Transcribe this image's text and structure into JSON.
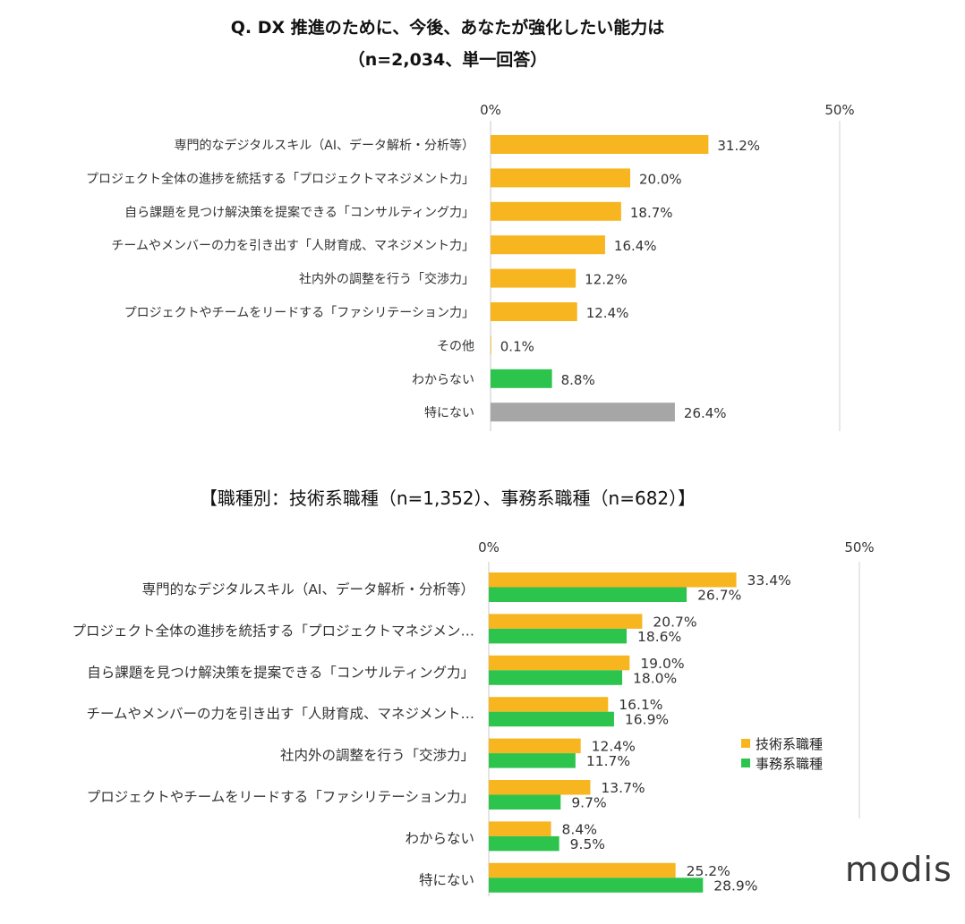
{
  "title_line1": "Q. DX 推進のために、今後、あなたが強化したい能力は",
  "title_line2": "（n=2,034、単一回答）",
  "subtitle": "【職種別：技術系職種（n=1,352）、事務系職種（n=682）】",
  "logo": "modis",
  "legend": {
    "items": [
      {
        "label": "技術系職種",
        "color": "#F7B520"
      },
      {
        "label": "事務系職種",
        "color": "#2DC44E"
      }
    ]
  },
  "chart_data": [
    {
      "type": "bar",
      "orientation": "horizontal",
      "xlim": [
        0,
        50
      ],
      "x_tick_labels": [
        "0%",
        "50%"
      ],
      "categories": [
        "専門的なデジタルスキル（AI、データ解析・分析等）",
        "プロジェクト全体の進捗を統括する「プロジェクトマネジメント力」",
        "自ら課題を見つけ解決策を提案できる「コンサルティング力」",
        "チームやメンバーの力を引き出す「人財育成、マネジメント力」",
        "社内外の調整を行う「交渉力」",
        "プロジェクトやチームをリードする「ファシリテーション力」",
        "その他",
        "わからない",
        "特にない"
      ],
      "values": [
        31.2,
        20.0,
        18.7,
        16.4,
        12.2,
        12.4,
        0.1,
        8.8,
        26.4
      ],
      "value_labels": [
        "31.2%",
        "20.0%",
        "18.7%",
        "16.4%",
        "12.2%",
        "12.4%",
        "0.1%",
        "8.8%",
        "26.4%"
      ],
      "colors": [
        "#F7B520",
        "#F7B520",
        "#F7B520",
        "#F7B520",
        "#F7B520",
        "#F7B520",
        "#F7B520",
        "#2DC44E",
        "#A6A6A6"
      ]
    },
    {
      "type": "bar",
      "orientation": "horizontal",
      "xlim": [
        0,
        50
      ],
      "x_tick_labels": [
        "0%",
        "50%"
      ],
      "categories": [
        "専門的なデジタルスキル（AI、データ解析・分析等）",
        "プロジェクト全体の進捗を統括する「プロジェクトマネジメン…",
        "自ら課題を見つけ解決策を提案できる「コンサルティング力」",
        "チームやメンバーの力を引き出す「人財育成、マネジメント…",
        "社内外の調整を行う「交渉力」",
        "プロジェクトやチームをリードする「ファシリテーション力」",
        "わからない",
        "特にない"
      ],
      "series": [
        {
          "name": "技術系職種",
          "color": "#F7B520",
          "values": [
            33.4,
            20.7,
            19.0,
            16.1,
            12.4,
            13.7,
            8.4,
            25.2
          ],
          "value_labels": [
            "33.4%",
            "20.7%",
            "19.0%",
            "16.1%",
            "12.4%",
            "13.7%",
            "8.4%",
            "25.2%"
          ]
        },
        {
          "name": "事務系職種",
          "color": "#2DC44E",
          "values": [
            26.7,
            18.6,
            18.0,
            16.9,
            11.7,
            9.7,
            9.5,
            28.9
          ],
          "value_labels": [
            "26.7%",
            "18.6%",
            "18.0%",
            "16.9%",
            "11.7%",
            "9.7%",
            "9.5%",
            "28.9%"
          ]
        }
      ],
      "legend_position": "right"
    }
  ]
}
